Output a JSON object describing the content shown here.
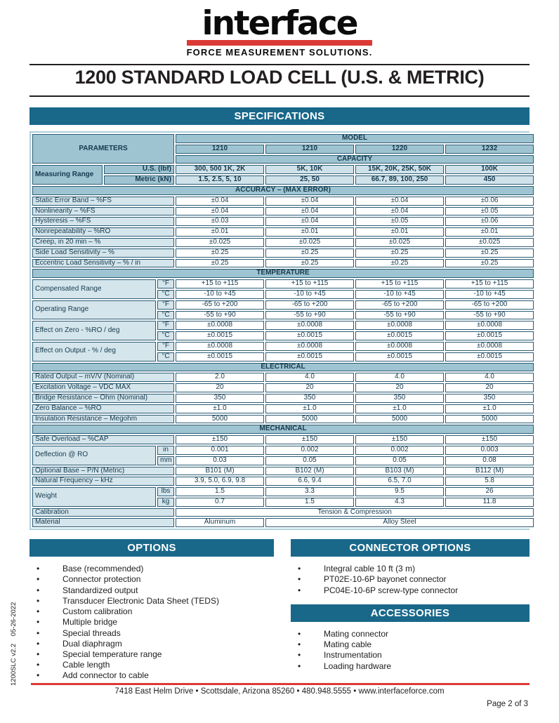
{
  "header": {
    "logo_text": "interface",
    "logo_tagline": "FORCE MEASUREMENT SOLUTIONS.",
    "title": "1200 STANDARD LOAD CELL (U.S. & METRIC)"
  },
  "colors": {
    "banner_teal": "#19688a",
    "logo_red": "#dc3a35",
    "header_blue": "#9ec4d2",
    "label_blue": "#d4e5ec",
    "capacity_blue": "#cfe2ea",
    "table_border": "#2a5b74"
  },
  "banners": {
    "specifications": "SPECIFICATIONS"
  },
  "spec_table": {
    "rows": [
      [
        {
          "t": "PARAMETERS",
          "k": "h",
          "cs": 3,
          "rs": 3
        },
        {
          "t": "MODEL",
          "k": "h",
          "cs": 4
        }
      ],
      [
        {
          "t": "1210",
          "k": "h"
        },
        {
          "t": "1210",
          "k": "h"
        },
        {
          "t": "1220",
          "k": "h"
        },
        {
          "t": "1232",
          "k": "h"
        }
      ],
      [
        {
          "t": "CAPACITY",
          "k": "h",
          "cs": 4
        }
      ],
      [
        {
          "t": "Measuring Range",
          "k": "hl",
          "rs": 2
        },
        {
          "t": "U.S. (lbf)",
          "k": "hr",
          "cs": 2
        },
        {
          "t": "300, 500 1K, 2K",
          "k": "c"
        },
        {
          "t": "5K, 10K",
          "k": "c"
        },
        {
          "t": "15K, 20K, 25K, 50K",
          "k": "c"
        },
        {
          "t": "100K",
          "k": "c"
        }
      ],
      [
        {
          "t": "Metric (kN)",
          "k": "hr",
          "cs": 2
        },
        {
          "t": "1.5, 2.5, 5, 10",
          "k": "c"
        },
        {
          "t": "25, 50",
          "k": "c"
        },
        {
          "t": "66.7, 89, 100, 250",
          "k": "c"
        },
        {
          "t": "450",
          "k": "c"
        }
      ],
      [
        {
          "t": "ACCURACY – (MAX ERROR)",
          "k": "s",
          "cs": 7
        }
      ],
      [
        {
          "t": "Static Error Band – %FS",
          "k": "l",
          "cs": 3
        },
        {
          "t": "±0.04",
          "k": "v"
        },
        {
          "t": "±0.04",
          "k": "v"
        },
        {
          "t": "±0.04",
          "k": "v"
        },
        {
          "t": "±0.06",
          "k": "v"
        }
      ],
      [
        {
          "t": "Nonlinearity – %FS",
          "k": "l",
          "cs": 3
        },
        {
          "t": "±0.04",
          "k": "v"
        },
        {
          "t": "±0.04",
          "k": "v"
        },
        {
          "t": "±0.04",
          "k": "v"
        },
        {
          "t": "±0.05",
          "k": "v"
        }
      ],
      [
        {
          "t": "Hysteresis – %FS",
          "k": "l",
          "cs": 3
        },
        {
          "t": "±0.03",
          "k": "v"
        },
        {
          "t": "±0.04",
          "k": "v"
        },
        {
          "t": "±0.05",
          "k": "v"
        },
        {
          "t": "±0.06",
          "k": "v"
        }
      ],
      [
        {
          "t": "Nonrepeatability – %RO",
          "k": "l",
          "cs": 3
        },
        {
          "t": "±0.01",
          "k": "v"
        },
        {
          "t": "±0.01",
          "k": "v"
        },
        {
          "t": "±0.01",
          "k": "v"
        },
        {
          "t": "±0.01",
          "k": "v"
        }
      ],
      [
        {
          "t": "Creep, in 20 min – %",
          "k": "l",
          "cs": 3
        },
        {
          "t": "±0.025",
          "k": "v"
        },
        {
          "t": "±0.025",
          "k": "v"
        },
        {
          "t": "±0.025",
          "k": "v"
        },
        {
          "t": "±0.025",
          "k": "v"
        }
      ],
      [
        {
          "t": "Side Load Sensitivity – %",
          "k": "l",
          "cs": 3
        },
        {
          "t": "±0.25",
          "k": "v"
        },
        {
          "t": "±0.25",
          "k": "v"
        },
        {
          "t": "±0.25",
          "k": "v"
        },
        {
          "t": "±0.25",
          "k": "v"
        }
      ],
      [
        {
          "t": "Eccentric Load Sensitivity – % / in",
          "k": "l",
          "cs": 3
        },
        {
          "t": "±0.25",
          "k": "v"
        },
        {
          "t": "±0.25",
          "k": "v"
        },
        {
          "t": "±0.25",
          "k": "v"
        },
        {
          "t": "±0.25",
          "k": "v"
        }
      ],
      [
        {
          "t": "TEMPERATURE",
          "k": "s",
          "cs": 7
        }
      ],
      [
        {
          "t": "Compensated Range",
          "k": "l",
          "cs": 2,
          "rs": 2
        },
        {
          "t": "°F",
          "k": "u"
        },
        {
          "t": "+15 to +115",
          "k": "v"
        },
        {
          "t": "+15 to +115",
          "k": "v"
        },
        {
          "t": "+15 to +115",
          "k": "v"
        },
        {
          "t": "+15 to +115",
          "k": "v"
        }
      ],
      [
        {
          "t": "°C",
          "k": "u"
        },
        {
          "t": "-10 to +45",
          "k": "v"
        },
        {
          "t": "-10 to +45",
          "k": "v"
        },
        {
          "t": "-10 to +45",
          "k": "v"
        },
        {
          "t": "-10 to +45",
          "k": "v"
        }
      ],
      [
        {
          "t": "Operating Range",
          "k": "l",
          "cs": 2,
          "rs": 2
        },
        {
          "t": "°F",
          "k": "u"
        },
        {
          "t": "-65 to +200",
          "k": "v"
        },
        {
          "t": "-65 to +200",
          "k": "v"
        },
        {
          "t": "-65 to +200",
          "k": "v"
        },
        {
          "t": "-65 to +200",
          "k": "v"
        }
      ],
      [
        {
          "t": "°C",
          "k": "u"
        },
        {
          "t": "-55 to +90",
          "k": "v"
        },
        {
          "t": "-55 to +90",
          "k": "v"
        },
        {
          "t": "-55 to +90",
          "k": "v"
        },
        {
          "t": "-55 to +90",
          "k": "v"
        }
      ],
      [
        {
          "t": "Effect on Zero - %RO / deg",
          "k": "l",
          "cs": 2,
          "rs": 2
        },
        {
          "t": "°F",
          "k": "u"
        },
        {
          "t": "±0.0008",
          "k": "v"
        },
        {
          "t": "±0.0008",
          "k": "v"
        },
        {
          "t": "±0.0008",
          "k": "v"
        },
        {
          "t": "±0.0008",
          "k": "v"
        }
      ],
      [
        {
          "t": "°C",
          "k": "u"
        },
        {
          "t": "±0.0015",
          "k": "v"
        },
        {
          "t": "±0.0015",
          "k": "v"
        },
        {
          "t": "±0.0015",
          "k": "v"
        },
        {
          "t": "±0.0015",
          "k": "v"
        }
      ],
      [
        {
          "t": "Effect on Output - % / deg",
          "k": "l",
          "cs": 2,
          "rs": 2
        },
        {
          "t": "°F",
          "k": "u"
        },
        {
          "t": "±0.0008",
          "k": "v"
        },
        {
          "t": "±0.0008",
          "k": "v"
        },
        {
          "t": "±0.0008",
          "k": "v"
        },
        {
          "t": "±0.0008",
          "k": "v"
        }
      ],
      [
        {
          "t": "°C",
          "k": "u"
        },
        {
          "t": "±0.0015",
          "k": "v"
        },
        {
          "t": "±0.0015",
          "k": "v"
        },
        {
          "t": "±0.0015",
          "k": "v"
        },
        {
          "t": "±0.0015",
          "k": "v"
        }
      ],
      [
        {
          "t": "ELECTRICAL",
          "k": "s",
          "cs": 7
        }
      ],
      [
        {
          "t": "Rated Output – mV/V (Nominal)",
          "k": "l",
          "cs": 3
        },
        {
          "t": "2.0",
          "k": "v"
        },
        {
          "t": "4.0",
          "k": "v"
        },
        {
          "t": "4.0",
          "k": "v"
        },
        {
          "t": "4.0",
          "k": "v"
        }
      ],
      [
        {
          "t": "Excitation Voltage – VDC MAX",
          "k": "l",
          "cs": 3
        },
        {
          "t": "20",
          "k": "v"
        },
        {
          "t": "20",
          "k": "v"
        },
        {
          "t": "20",
          "k": "v"
        },
        {
          "t": "20",
          "k": "v"
        }
      ],
      [
        {
          "t": "Bridge Resistance – Ohm (Nominal)",
          "k": "l",
          "cs": 3
        },
        {
          "t": "350",
          "k": "v"
        },
        {
          "t": "350",
          "k": "v"
        },
        {
          "t": "350",
          "k": "v"
        },
        {
          "t": "350",
          "k": "v"
        }
      ],
      [
        {
          "t": "Zero Balance – %RO",
          "k": "l",
          "cs": 3
        },
        {
          "t": "±1.0",
          "k": "v"
        },
        {
          "t": "±1.0",
          "k": "v"
        },
        {
          "t": "±1.0",
          "k": "v"
        },
        {
          "t": "±1.0",
          "k": "v"
        }
      ],
      [
        {
          "t": "Insulation Resistance – Megohm",
          "k": "l",
          "cs": 3
        },
        {
          "t": "5000",
          "k": "v"
        },
        {
          "t": "5000",
          "k": "v"
        },
        {
          "t": "5000",
          "k": "v"
        },
        {
          "t": "5000",
          "k": "v"
        }
      ],
      [
        {
          "t": "MECHANICAL",
          "k": "s",
          "cs": 7
        }
      ],
      [
        {
          "t": "Safe Overload – %CAP",
          "k": "l",
          "cs": 3
        },
        {
          "t": "±150",
          "k": "v"
        },
        {
          "t": "±150",
          "k": "v"
        },
        {
          "t": "±150",
          "k": "v"
        },
        {
          "t": "±150",
          "k": "v"
        }
      ],
      [
        {
          "t": "Deflection @ RO",
          "k": "l",
          "cs": 2,
          "rs": 2
        },
        {
          "t": "in",
          "k": "u"
        },
        {
          "t": "0.001",
          "k": "v"
        },
        {
          "t": "0.002",
          "k": "v"
        },
        {
          "t": "0.002",
          "k": "v"
        },
        {
          "t": "0.003",
          "k": "v"
        }
      ],
      [
        {
          "t": "mm",
          "k": "u"
        },
        {
          "t": "0.03",
          "k": "v"
        },
        {
          "t": "0.05",
          "k": "v"
        },
        {
          "t": "0.05",
          "k": "v"
        },
        {
          "t": "0.08",
          "k": "v"
        }
      ],
      [
        {
          "t": "Optional Base – P/N (Metric)",
          "k": "l",
          "cs": 3
        },
        {
          "t": "B101 (M)",
          "k": "v"
        },
        {
          "t": "B102 (M)",
          "k": "v"
        },
        {
          "t": "B103 (M)",
          "k": "v"
        },
        {
          "t": "B112 (M)",
          "k": "v"
        }
      ],
      [
        {
          "t": "Natural Frequency – kHz",
          "k": "l",
          "cs": 3
        },
        {
          "t": "3.9, 5.0, 6.9, 9.8",
          "k": "v"
        },
        {
          "t": "6.6, 9.4",
          "k": "v"
        },
        {
          "t": "6.5, 7.0",
          "k": "v"
        },
        {
          "t": "5.8",
          "k": "v"
        }
      ],
      [
        {
          "t": "Weight",
          "k": "l",
          "cs": 2,
          "rs": 2
        },
        {
          "t": "lbs",
          "k": "u"
        },
        {
          "t": "1.5",
          "k": "v"
        },
        {
          "t": "3.3",
          "k": "v"
        },
        {
          "t": "9.5",
          "k": "v"
        },
        {
          "t": "26",
          "k": "v"
        }
      ],
      [
        {
          "t": "kg",
          "k": "u"
        },
        {
          "t": "0.7",
          "k": "v"
        },
        {
          "t": "1.5",
          "k": "v"
        },
        {
          "t": "4.3",
          "k": "v"
        },
        {
          "t": "11.8",
          "k": "v"
        }
      ],
      [
        {
          "t": "Calibration",
          "k": "l",
          "cs": 3
        },
        {
          "t": "Tension & Compression",
          "k": "v",
          "cs": 4
        }
      ],
      [
        {
          "t": "Material",
          "k": "l",
          "cs": 3
        },
        {
          "t": "Aluminum",
          "k": "v"
        },
        {
          "t": "Alloy Steel",
          "k": "v",
          "cs": 3
        }
      ]
    ]
  },
  "options": {
    "title": "OPTIONS",
    "items": [
      "Base (recommended)",
      "Connector protection",
      "Standardized output",
      "Transducer Electronic Data Sheet (TEDS)",
      "Custom calibration",
      "Multiple bridge",
      "Special threads",
      "Dual diaphragm",
      "Special temperature range",
      "Cable length",
      "Add connector to cable"
    ]
  },
  "connector_options": {
    "title": "CONNECTOR OPTIONS",
    "items": [
      "Integral cable 10 ft (3 m)",
      "PT02E-10-6P bayonet connector",
      "PC04E-10-6P screw-type connector"
    ]
  },
  "accessories": {
    "title": "ACCESSORIES",
    "items": [
      "Mating connector",
      "Mating cable",
      "Instrumentation",
      "Loading hardware"
    ]
  },
  "footer": {
    "address": "7418 East Helm Drive • Scottsdale, Arizona 85260 • 480.948.5555 • www.interfaceforce.com",
    "page": "Page 2 of 3",
    "doc_code": "1200SLC v2.2    05-26-2022"
  }
}
